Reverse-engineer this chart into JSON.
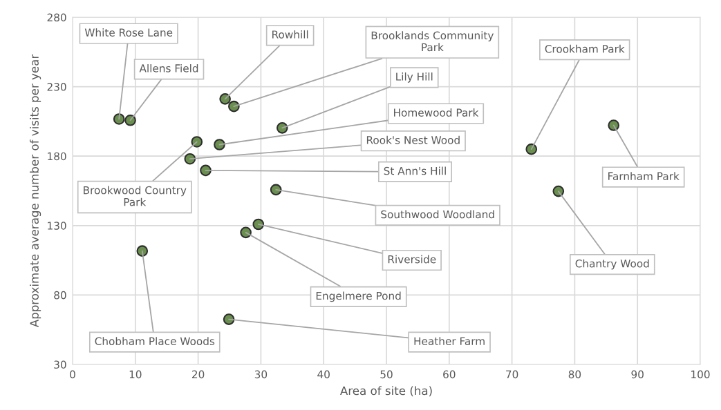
{
  "chart_data": {
    "type": "scatter",
    "xlabel": "Area of site (ha)",
    "ylabel": "Approximate average number of visits per year",
    "x": [
      7.4,
      9.2,
      24.3,
      25.7,
      33.4,
      23.4,
      19.8,
      18.7,
      21.2,
      32.4,
      29.6,
      27.6,
      11.1,
      24.9,
      73.1,
      86.2,
      77.4
    ],
    "series": [
      {
        "color": "#6a8f4f",
        "values": [
          206.7,
          205.8,
          221.2,
          215.8,
          200.3,
          188.3,
          190.3,
          178,
          169.7,
          155.8,
          130.9,
          125,
          111.7,
          62.5,
          185,
          202.2,
          154.7
        ]
      }
    ],
    "annotations": [
      {
        "text": "White Rose Lane",
        "x": 7.4,
        "y": 206.7
      },
      {
        "text": "Allens Field",
        "x": 9.2,
        "y": 205.8
      },
      {
        "text": "Rowhill",
        "x": 24.3,
        "y": 221.2
      },
      {
        "text": "Brooklands Community\nPark",
        "x": 25.7,
        "y": 215.8
      },
      {
        "text": "Lily Hill",
        "x": 33.4,
        "y": 200.3
      },
      {
        "text": "Homewood Park",
        "x": 23.4,
        "y": 188.3
      },
      {
        "text": "Brookwood Country\nPark",
        "x": 19.8,
        "y": 190.3
      },
      {
        "text": "Rook's Nest Wood",
        "x": 18.7,
        "y": 178
      },
      {
        "text": "St Ann's Hill",
        "x": 21.2,
        "y": 169.7
      },
      {
        "text": "Southwood Woodland",
        "x": 32.4,
        "y": 155.8
      },
      {
        "text": "Riverside",
        "x": 29.6,
        "y": 130.9
      },
      {
        "text": "Engelmere Pond",
        "x": 27.6,
        "y": 125
      },
      {
        "text": "Chobham Place Woods",
        "x": 11.1,
        "y": 111.7
      },
      {
        "text": "Heather Farm",
        "x": 24.9,
        "y": 62.5
      },
      {
        "text": "Crookham Park",
        "x": 73.1,
        "y": 185
      },
      {
        "text": "Farnham Park",
        "x": 86.2,
        "y": 202.2
      },
      {
        "text": "Chantry Wood",
        "x": 77.4,
        "y": 154.7
      }
    ],
    "xlim": [
      0,
      100
    ],
    "xticks": [
      0,
      10,
      20,
      30,
      40,
      50,
      60,
      70,
      80,
      90,
      100
    ],
    "ylim": [
      30,
      280
    ],
    "yticks": [
      30,
      80,
      130,
      180,
      230,
      280
    ],
    "grid": true,
    "marker": "circle"
  }
}
